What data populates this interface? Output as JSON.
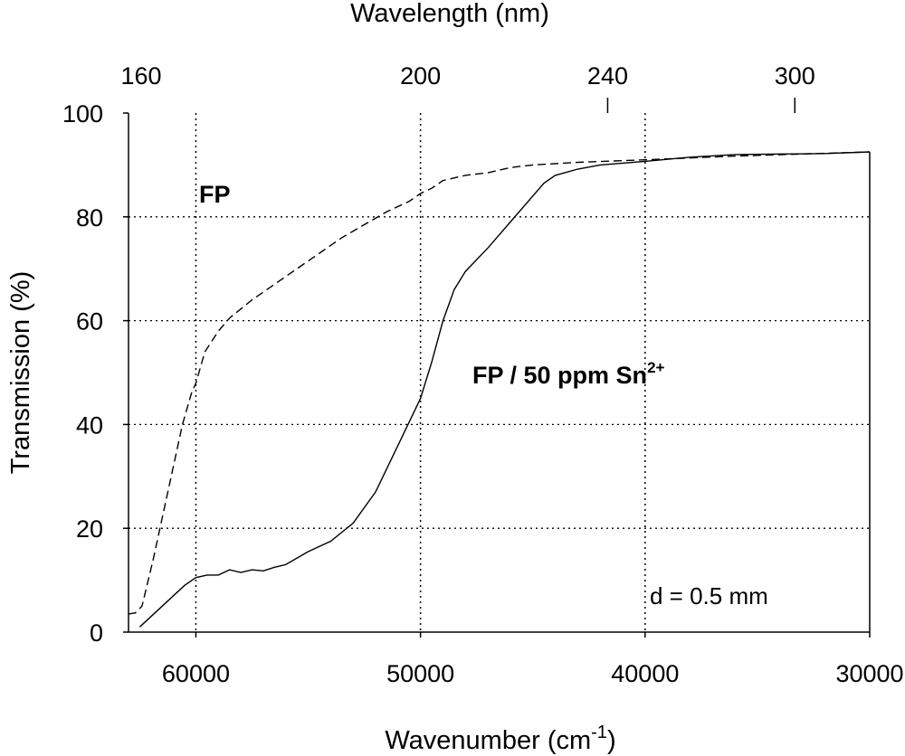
{
  "chart_data": {
    "type": "line",
    "title": "",
    "xlabel": "Wavenumber (cm",
    "xlabel_sup": "-1",
    "xlabel_end": ")",
    "ylabel": "Transmission (%)",
    "top_axis_label": "Wavelength (nm)",
    "xlim": [
      63000,
      30000
    ],
    "ylim": [
      0,
      100
    ],
    "grid": true,
    "x_ticks": [
      60000,
      50000,
      40000,
      30000
    ],
    "x_tick_labels": [
      "60000",
      "50000",
      "40000",
      "30000"
    ],
    "y_ticks": [
      0,
      20,
      40,
      60,
      80,
      100
    ],
    "y_tick_labels": [
      "0",
      "20",
      "40",
      "60",
      "80",
      "100"
    ],
    "top_ticks_nm": [
      160,
      200,
      240,
      300
    ],
    "top_tick_labels": [
      "160",
      "200",
      "240",
      "300"
    ],
    "series": [
      {
        "name": "FP",
        "style": "dashed",
        "x": [
          63000,
          62700,
          62400,
          61900,
          61300,
          60600,
          60200,
          60000,
          59600,
          59000,
          58500,
          57500,
          56500,
          55500,
          54500,
          53500,
          52500,
          51500,
          50500,
          50000,
          49500,
          49000,
          48000,
          47000,
          46000,
          45000,
          43000,
          40000,
          36000,
          30000
        ],
        "y": [
          3.5,
          3.7,
          5,
          14,
          26,
          40,
          46,
          48,
          54,
          58,
          60.5,
          64,
          67,
          70,
          73,
          76,
          78.5,
          81,
          83,
          84.5,
          85.5,
          87,
          88,
          88.5,
          89.5,
          90,
          90.5,
          91,
          91.7,
          92.5
        ]
      },
      {
        "name": "FP / 50 ppm Sn2+",
        "style": "solid",
        "x": [
          62500,
          61500,
          60500,
          60000,
          59500,
          59000,
          58500,
          58000,
          57500,
          57000,
          56500,
          56000,
          55000,
          54000,
          53000,
          52000,
          51000,
          50000,
          49500,
          49000,
          48500,
          48000,
          47000,
          46000,
          45000,
          44500,
          44000,
          43000,
          42000,
          40000,
          38000,
          36000,
          34000,
          32000,
          30000
        ],
        "y": [
          1,
          5,
          9,
          10.5,
          11,
          11,
          12,
          11.5,
          12,
          11.8,
          12.5,
          13,
          15.5,
          17.5,
          21,
          27,
          36,
          45,
          52,
          60,
          66,
          69.5,
          74,
          79,
          84,
          86.5,
          88,
          89.2,
          90,
          90.7,
          91.5,
          92,
          92.1,
          92.2,
          92.5
        ]
      }
    ],
    "annotations": {
      "fp_label": "FP",
      "sn_label": "FP / 50 ppm Sn",
      "sn_sup": "2+",
      "thickness": "d = 0.5 mm"
    },
    "legend": "none"
  }
}
